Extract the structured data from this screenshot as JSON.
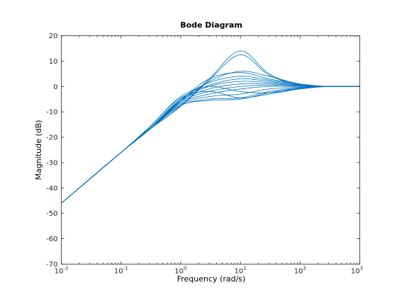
{
  "chart_data": {
    "type": "line",
    "title": "Bode Diagram",
    "xlabel": "Frequency  (rad/s)",
    "ylabel": "Magnitude (dB)",
    "xscale": "log",
    "xlim": [
      0.01,
      1000
    ],
    "ylim": [
      -70,
      20
    ],
    "x_ticks": [
      {
        "value": 0.01,
        "base": "10",
        "exp": "-2"
      },
      {
        "value": 0.1,
        "base": "10",
        "exp": "-1"
      },
      {
        "value": 1,
        "base": "10",
        "exp": "0"
      },
      {
        "value": 10,
        "base": "10",
        "exp": "1"
      },
      {
        "value": 100,
        "base": "10",
        "exp": "2"
      },
      {
        "value": 1000,
        "base": "10",
        "exp": "3"
      }
    ],
    "y_ticks": [
      20,
      10,
      0,
      -10,
      -20,
      -30,
      -40,
      -50,
      -60,
      -70
    ],
    "grid": false,
    "line_color": "#0072bd",
    "series": [
      {
        "x": [
          0.01,
          0.1,
          0.3,
          1,
          3,
          10,
          30,
          100,
          300,
          1000
        ],
        "values": [
          -46,
          -26,
          -17,
          -7.5,
          3,
          14,
          5,
          0.5,
          0,
          0
        ]
      },
      {
        "x": [
          0.01,
          0.1,
          0.3,
          1,
          3,
          10,
          30,
          100,
          300,
          1000
        ],
        "values": [
          -46,
          -26,
          -17,
          -7.8,
          2.5,
          12.5,
          4.5,
          0.5,
          0,
          0
        ]
      },
      {
        "x": [
          0.01,
          0.1,
          0.3,
          1,
          3,
          10,
          30,
          100,
          300,
          1000
        ],
        "values": [
          -46,
          -26,
          -16.5,
          -6,
          2,
          6,
          4,
          1,
          0,
          0
        ]
      },
      {
        "x": [
          0.01,
          0.1,
          0.3,
          1,
          3,
          10,
          30,
          100,
          300,
          1000
        ],
        "values": [
          -46,
          -26,
          -16.5,
          -5.5,
          3,
          5.5,
          3,
          1,
          0,
          0
        ]
      },
      {
        "x": [
          0.01,
          0.1,
          0.3,
          1,
          3,
          10,
          30,
          100,
          300,
          1000
        ],
        "values": [
          -46,
          -26,
          -16.5,
          -5,
          1.5,
          4,
          2.5,
          0.8,
          0,
          0
        ]
      },
      {
        "x": [
          0.01,
          0.1,
          0.3,
          1,
          3,
          10,
          30,
          100,
          300,
          1000
        ],
        "values": [
          -46,
          -26,
          -16.5,
          -5,
          0.5,
          3,
          2,
          0.5,
          0,
          0
        ]
      },
      {
        "x": [
          0.01,
          0.1,
          0.3,
          1,
          3,
          10,
          30,
          100,
          300,
          1000
        ],
        "values": [
          -46,
          -26,
          -16.5,
          -5.5,
          0,
          2,
          1.5,
          0.5,
          0,
          0
        ]
      },
      {
        "x": [
          0.01,
          0.1,
          0.3,
          1,
          3,
          10,
          30,
          100,
          300,
          1000
        ],
        "values": [
          -46,
          -26,
          -16.5,
          -5.5,
          -1,
          1,
          1,
          0.3,
          0,
          0
        ]
      },
      {
        "x": [
          0.01,
          0.1,
          0.3,
          1,
          3,
          10,
          30,
          100,
          300,
          1000
        ],
        "values": [
          -46,
          -26,
          -17,
          -6,
          -2,
          0,
          0.5,
          0.2,
          0,
          0
        ]
      },
      {
        "x": [
          0.01,
          0.1,
          0.3,
          1,
          3,
          10,
          30,
          100,
          300,
          1000
        ],
        "values": [
          -46,
          -26,
          -17,
          -6.5,
          -3,
          -1,
          0,
          0,
          0,
          0
        ]
      },
      {
        "x": [
          0.01,
          0.1,
          0.3,
          1,
          3,
          10,
          30,
          100,
          300,
          1000
        ],
        "values": [
          -46,
          -26,
          -17,
          -7,
          -4,
          -3,
          -1,
          -0.3,
          0,
          0
        ]
      },
      {
        "x": [
          0.01,
          0.1,
          0.3,
          1,
          3,
          10,
          30,
          100,
          300,
          1000
        ],
        "values": [
          -46,
          -26,
          -17,
          -7.5,
          -5,
          -4.5,
          -2,
          -0.5,
          0,
          0
        ]
      },
      {
        "x": [
          0.01,
          0.1,
          0.3,
          1,
          3,
          10,
          30,
          100,
          300,
          1000
        ],
        "values": [
          -46,
          -26,
          -17,
          -7.5,
          -5.5,
          -5,
          -2.5,
          -0.7,
          0,
          0
        ]
      },
      {
        "x": [
          0.01,
          0.1,
          0.3,
          1,
          3,
          10,
          30,
          100,
          300,
          1000
        ],
        "values": [
          -46,
          -26,
          -16,
          -4,
          0,
          -2,
          -2.5,
          -0.8,
          0,
          0
        ]
      },
      {
        "x": [
          0.01,
          0.1,
          0.3,
          1,
          3,
          10,
          30,
          100,
          300,
          1000
        ],
        "values": [
          -46,
          -26,
          -16,
          -4.5,
          -2,
          -4.5,
          -3,
          -1,
          0,
          0
        ]
      }
    ]
  }
}
